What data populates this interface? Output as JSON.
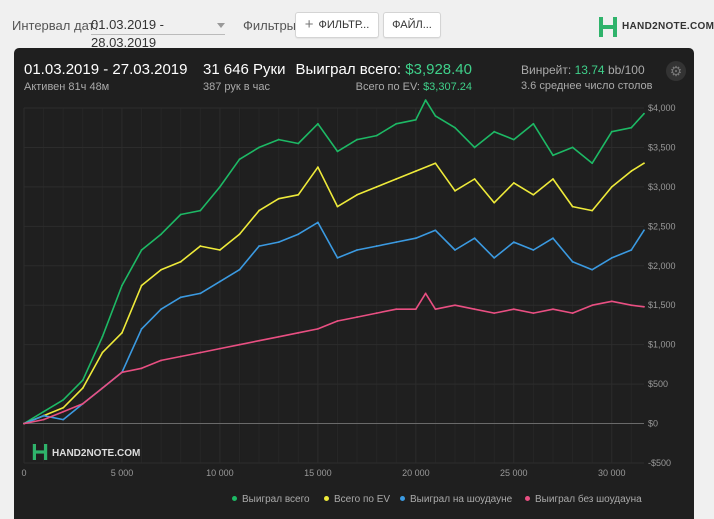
{
  "toolbar": {
    "date_interval_label": "Интервал дат:",
    "date_range_value": "01.03.2019 - 28.03.2019",
    "filters_label": "Фильтры:",
    "filter_button_label": "ФИЛЬТР...",
    "file_button_label": "ФАЙЛ...",
    "logo_text": "HAND2NOTE.COM"
  },
  "summary": {
    "period": "01.03.2019 - 27.03.2019",
    "active_time": "Активен 81ч 48м",
    "hands": "31 646 Руки",
    "hands_per_hour": "387 рук в час",
    "won_total_label": "Выиграл всего:",
    "won_total_value": "$3,928.40",
    "ev_total_label": "Всего по EV:",
    "ev_total_value": "$3,307.24",
    "winrate_label": "Винрейт:",
    "winrate_value": "13.74",
    "winrate_unit": "bb/100",
    "tables_text": "3.6 среднее число столов"
  },
  "chart_data": {
    "type": "line",
    "xlim": [
      0,
      31646
    ],
    "ylim": [
      -500,
      4000
    ],
    "x_ticks": [
      0,
      5000,
      10000,
      15000,
      20000,
      25000,
      30000
    ],
    "x_tick_labels": [
      "0",
      "5 000",
      "10 000",
      "15 000",
      "20 000",
      "25 000",
      "30 000"
    ],
    "y_ticks": [
      -500,
      0,
      500,
      1000,
      1500,
      2000,
      2500,
      3000,
      3500,
      4000
    ],
    "y_tick_labels": [
      "-$500",
      "$0",
      "$500",
      "$1,000",
      "$1,500",
      "$2,000",
      "$2,500",
      "$3,000",
      "$3,500",
      "$4,000"
    ],
    "grid": true,
    "legend_position": "bottom-right",
    "watermark": "HAND2NOTE.COM",
    "series": [
      {
        "name": "Выиграл всего",
        "color": "#1db965",
        "x": [
          0,
          1000,
          2000,
          3000,
          4000,
          5000,
          6000,
          7000,
          8000,
          9000,
          10000,
          11000,
          12000,
          13000,
          14000,
          15000,
          16000,
          17000,
          18000,
          19000,
          20000,
          20500,
          21000,
          22000,
          23000,
          24000,
          25000,
          26000,
          27000,
          28000,
          29000,
          30000,
          31000,
          31646
        ],
        "y": [
          0,
          150,
          300,
          550,
          1100,
          1750,
          2200,
          2400,
          2650,
          2700,
          3000,
          3350,
          3500,
          3600,
          3550,
          3800,
          3450,
          3600,
          3650,
          3800,
          3850,
          4100,
          3900,
          3750,
          3500,
          3700,
          3600,
          3800,
          3400,
          3500,
          3300,
          3700,
          3750,
          3928
        ]
      },
      {
        "name": "Всего по EV",
        "color": "#eeea3a",
        "x": [
          0,
          1000,
          2000,
          3000,
          4000,
          5000,
          6000,
          7000,
          8000,
          9000,
          10000,
          11000,
          12000,
          13000,
          14000,
          15000,
          16000,
          17000,
          18000,
          19000,
          20000,
          21000,
          22000,
          23000,
          24000,
          25000,
          26000,
          27000,
          28000,
          29000,
          30000,
          31000,
          31646
        ],
        "y": [
          0,
          100,
          200,
          450,
          900,
          1150,
          1750,
          1950,
          2050,
          2250,
          2200,
          2400,
          2700,
          2850,
          2900,
          3250,
          2750,
          2900,
          3000,
          3100,
          3200,
          3300,
          2950,
          3100,
          2800,
          3050,
          2900,
          3100,
          2750,
          2700,
          3000,
          3200,
          3300
        ]
      },
      {
        "name": "Выиграл на шоудауне",
        "color": "#3b9ae1",
        "x": [
          0,
          1000,
          2000,
          3000,
          4000,
          5000,
          6000,
          7000,
          8000,
          9000,
          10000,
          11000,
          12000,
          13000,
          14000,
          15000,
          16000,
          17000,
          18000,
          19000,
          20000,
          21000,
          22000,
          23000,
          24000,
          25000,
          26000,
          27000,
          28000,
          29000,
          30000,
          31000,
          31646
        ],
        "y": [
          0,
          100,
          50,
          250,
          450,
          650,
          1200,
          1450,
          1600,
          1650,
          1800,
          1950,
          2250,
          2300,
          2400,
          2550,
          2100,
          2200,
          2250,
          2300,
          2350,
          2450,
          2200,
          2350,
          2100,
          2300,
          2200,
          2350,
          2050,
          1950,
          2100,
          2200,
          2450
        ]
      },
      {
        "name": "Выиграл без шоудауна",
        "color": "#e94f82",
        "x": [
          0,
          1000,
          2000,
          3000,
          4000,
          5000,
          6000,
          7000,
          8000,
          9000,
          10000,
          11000,
          12000,
          13000,
          14000,
          15000,
          16000,
          17000,
          18000,
          19000,
          20000,
          20500,
          21000,
          22000,
          23000,
          24000,
          25000,
          26000,
          27000,
          28000,
          29000,
          30000,
          31000,
          31646
        ],
        "y": [
          0,
          50,
          150,
          250,
          450,
          650,
          700,
          800,
          850,
          900,
          950,
          1000,
          1050,
          1100,
          1150,
          1200,
          1300,
          1350,
          1400,
          1450,
          1450,
          1650,
          1450,
          1500,
          1450,
          1400,
          1450,
          1400,
          1450,
          1400,
          1500,
          1550,
          1500,
          1480
        ]
      }
    ]
  }
}
